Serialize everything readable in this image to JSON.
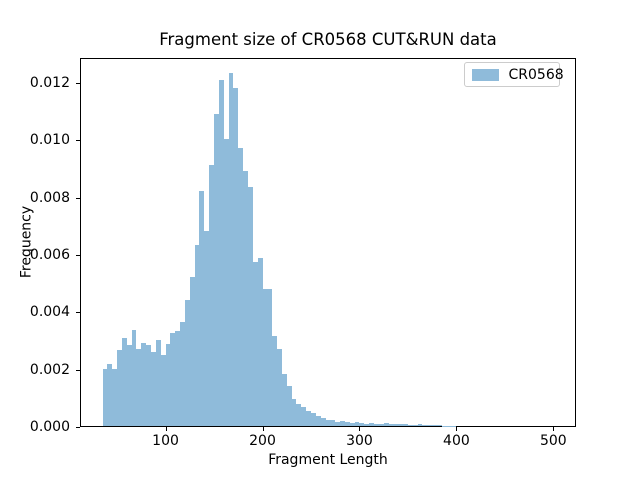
{
  "figure": {
    "background_color": "#ffffff",
    "text_color": "#000000",
    "spine_color": "#000000"
  },
  "legend": {
    "border_color": "#cccccc"
  },
  "chart_data": {
    "type": "bar",
    "subtype": "histogram",
    "title": "Fragment size of CR0568 CUT&RUN data",
    "xlabel": "Fragment Length",
    "ylabel": "Frequency",
    "legend_position": "upper right",
    "grid": false,
    "xlim": [
      11.75,
      523.25
    ],
    "ylim": [
      0,
      0.012885
    ],
    "x_tick_values": [
      100,
      200,
      300,
      400,
      500
    ],
    "x_tick_labels": [
      "100",
      "200",
      "300",
      "400",
      "500"
    ],
    "y_tick_values": [
      0.0,
      0.002,
      0.004,
      0.006,
      0.008,
      0.01,
      0.012
    ],
    "y_tick_labels": [
      "0.000",
      "0.002",
      "0.004",
      "0.006",
      "0.008",
      "0.010",
      "0.012"
    ],
    "bin_start": 35,
    "bin_width": 5,
    "series": [
      {
        "name": "CR0568",
        "color": "#8FBBDA",
        "values": [
          0.002,
          0.00218,
          0.002,
          0.00267,
          0.00309,
          0.00282,
          0.00336,
          0.0027,
          0.0029,
          0.00282,
          0.00259,
          0.00302,
          0.00249,
          0.00286,
          0.00325,
          0.00332,
          0.00363,
          0.0044,
          0.0052,
          0.0063,
          0.0082,
          0.0068,
          0.0091,
          0.0109,
          0.01207,
          0.01,
          0.01232,
          0.0118,
          0.0097,
          0.0089,
          0.00833,
          0.00573,
          0.00585,
          0.00478,
          0.00478,
          0.00316,
          0.0027,
          0.00182,
          0.00141,
          0.00095,
          0.00077,
          0.00067,
          0.00053,
          0.00046,
          0.00036,
          0.0003,
          0.00023,
          0.00021,
          0.00015,
          0.00018,
          0.00015,
          0.00011,
          0.00015,
          0.00011,
          9e-05,
          0.00012,
          9e-05,
          8e-05,
          0.0001,
          7e-05,
          6e-05,
          9e-05,
          6e-05,
          5e-05,
          5e-05,
          7e-05,
          4e-05,
          4e-05,
          3e-05,
          3e-05,
          2e-05,
          2e-05,
          2e-05,
          0,
          0,
          0,
          0,
          0,
          0,
          0,
          0,
          0,
          0,
          0,
          0,
          0,
          0,
          0,
          0,
          0,
          0,
          0,
          0
        ]
      }
    ]
  }
}
